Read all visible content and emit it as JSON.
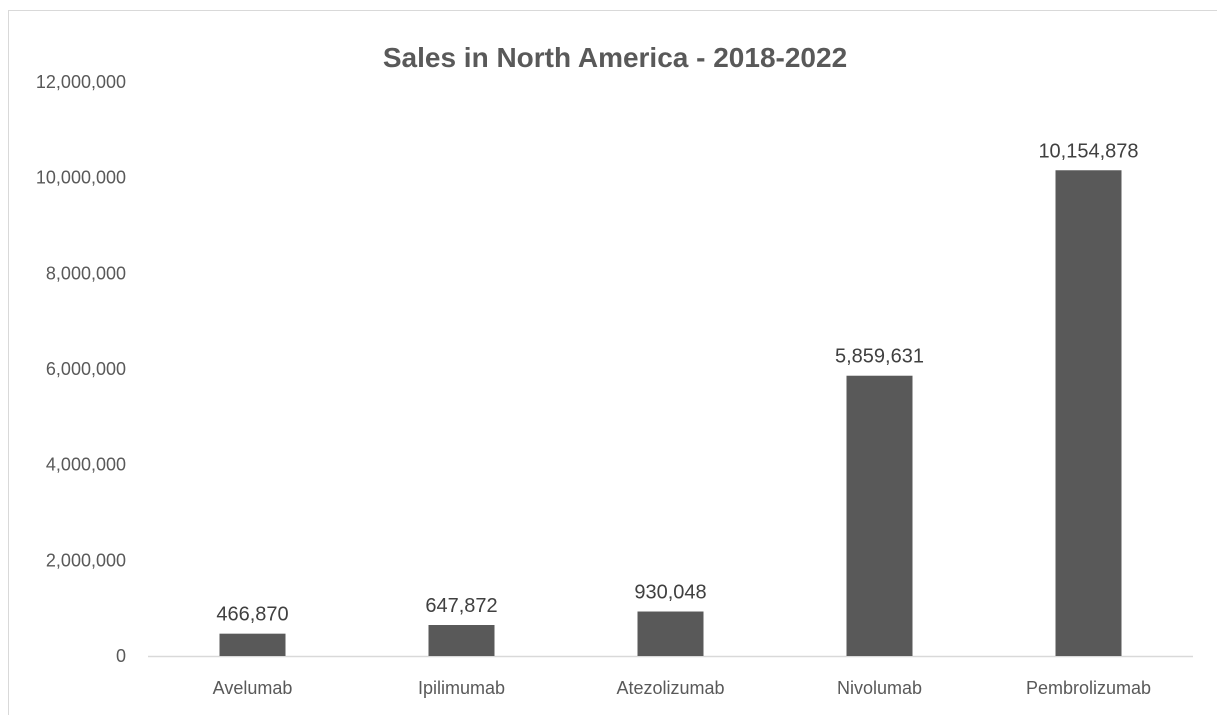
{
  "chart_data": {
    "type": "bar",
    "title": "Sales in North America - 2018-2022",
    "xlabel": "",
    "ylabel": "",
    "categories": [
      "Avelumab",
      "Ipilimumab",
      "Atezolizumab",
      "Nivolumab",
      "Pembrolizumab"
    ],
    "values": [
      466870,
      647872,
      930048,
      5859631,
      10154878
    ],
    "data_labels": [
      "466,870",
      "647,872",
      "930,048",
      "5,859,631",
      "10,154,878"
    ],
    "ylim": [
      0,
      12000000
    ],
    "y_ticks": [
      0,
      2000000,
      4000000,
      6000000,
      8000000,
      10000000,
      12000000
    ],
    "y_tick_labels": [
      "0",
      "2,000,000",
      "4,000,000",
      "6,000,000",
      "8,000,000",
      "10,000,000",
      "12,000,000"
    ],
    "grid": false,
    "legend": "none",
    "bar_color": "#595959"
  }
}
